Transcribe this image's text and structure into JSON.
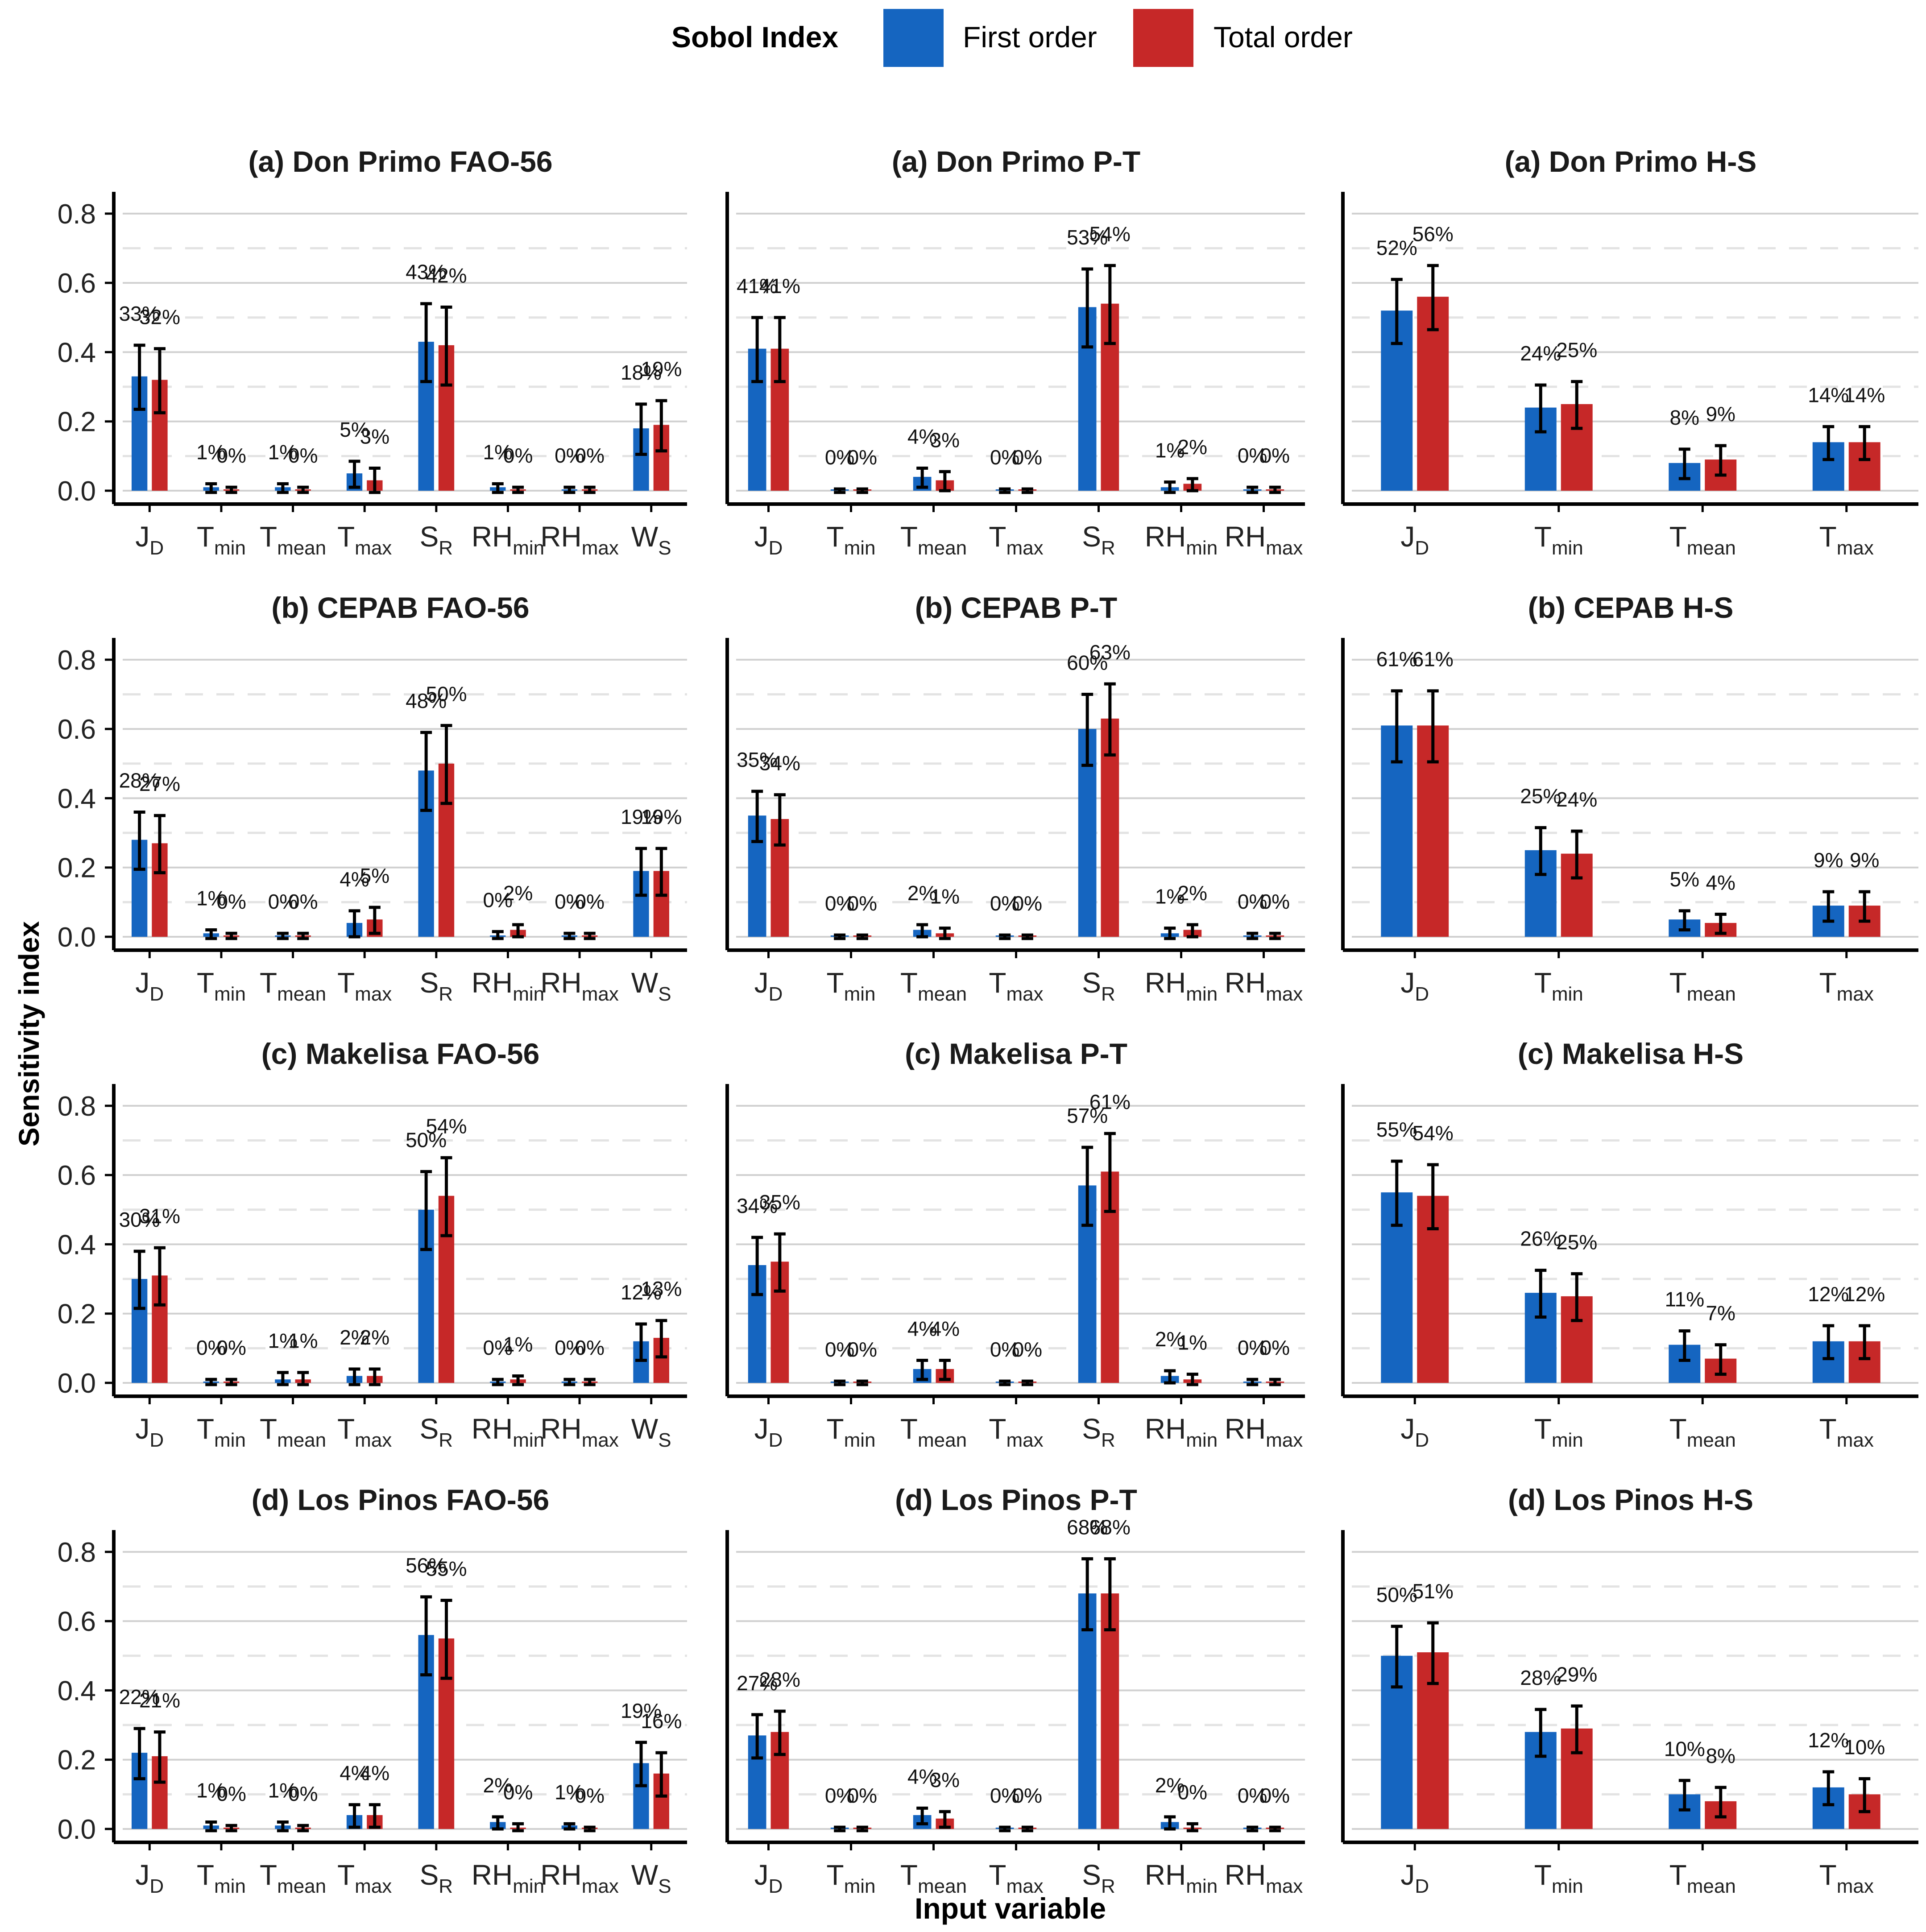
{
  "legend": {
    "title": "Sobol Index",
    "first_label": "First order",
    "total_label": "Total order"
  },
  "axis": {
    "ylabel": "Sensitivity index",
    "xlabel": "Input variable",
    "yticks": [
      "0.0",
      "0.2",
      "0.4",
      "0.6",
      "0.8"
    ]
  },
  "colors": {
    "first": "#1565c0",
    "total": "#c62828"
  },
  "chart_data": [
    {
      "type": "bar",
      "title": "(a) Don Primo FAO-56",
      "ylim": [
        0,
        0.85
      ],
      "categories": [
        [
          "J",
          "D"
        ],
        [
          "T",
          "min"
        ],
        [
          "T",
          "mean"
        ],
        [
          "T",
          "max"
        ],
        [
          "S",
          "R"
        ],
        [
          "RH",
          "min"
        ],
        [
          "RH",
          "max"
        ],
        [
          "W",
          "S"
        ]
      ],
      "series": [
        {
          "name": "First order",
          "values": [
            0.33,
            0.01,
            0.01,
            0.05,
            0.43,
            0.01,
            0.0,
            0.18
          ],
          "errors": [
            0.09,
            0.01,
            0.01,
            0.035,
            0.11,
            0.01,
            0.01,
            0.07
          ],
          "labels": [
            "33%",
            "1%",
            "1%",
            "5%",
            "43%",
            "1%",
            "0%",
            "18%"
          ]
        },
        {
          "name": "Total order",
          "values": [
            0.32,
            0.0,
            0.0,
            0.03,
            0.42,
            0.0,
            0.0,
            0.19
          ],
          "errors": [
            0.09,
            0.01,
            0.01,
            0.035,
            0.11,
            0.01,
            0.01,
            0.07
          ],
          "labels": [
            "32%",
            "0%",
            "0%",
            "3%",
            "42%",
            "0%",
            "0%",
            "19%"
          ]
        }
      ]
    },
    {
      "type": "bar",
      "title": "(a) Don Primo P-T",
      "ylim": [
        0,
        0.85
      ],
      "categories": [
        [
          "J",
          "D"
        ],
        [
          "T",
          "min"
        ],
        [
          "T",
          "mean"
        ],
        [
          "T",
          "max"
        ],
        [
          "S",
          "R"
        ],
        [
          "RH",
          "min"
        ],
        [
          "RH",
          "max"
        ]
      ],
      "series": [
        {
          "name": "First order",
          "values": [
            0.41,
            0.0,
            0.04,
            0.0,
            0.53,
            0.01,
            0.0
          ],
          "errors": [
            0.09,
            0.005,
            0.025,
            0.005,
            0.11,
            0.015,
            0.01
          ],
          "labels": [
            "41%",
            "0%",
            "4%",
            "0%",
            "53%",
            "1%",
            "0%"
          ]
        },
        {
          "name": "Total order",
          "values": [
            0.41,
            0.0,
            0.03,
            0.0,
            0.54,
            0.02,
            0.0
          ],
          "errors": [
            0.09,
            0.005,
            0.025,
            0.005,
            0.11,
            0.015,
            0.01
          ],
          "labels": [
            "41%",
            "0%",
            "3%",
            "0%",
            "54%",
            "2%",
            "0%"
          ]
        }
      ]
    },
    {
      "type": "bar",
      "title": "(a) Don Primo H-S",
      "ylim": [
        0,
        0.85
      ],
      "categories": [
        [
          "J",
          "D"
        ],
        [
          "T",
          "min"
        ],
        [
          "T",
          "mean"
        ],
        [
          "T",
          "max"
        ]
      ],
      "series": [
        {
          "name": "First order",
          "values": [
            0.52,
            0.24,
            0.08,
            0.14
          ],
          "errors": [
            0.09,
            0.065,
            0.04,
            0.045
          ],
          "labels": [
            "52%",
            "24%",
            "8%",
            "14%"
          ]
        },
        {
          "name": "Total order",
          "values": [
            0.56,
            0.25,
            0.09,
            0.14
          ],
          "errors": [
            0.09,
            0.065,
            0.04,
            0.045
          ],
          "labels": [
            "56%",
            "25%",
            "9%",
            "14%"
          ]
        }
      ]
    },
    {
      "type": "bar",
      "title": "(b) CEPAB FAO-56",
      "ylim": [
        0,
        0.85
      ],
      "categories": [
        [
          "J",
          "D"
        ],
        [
          "T",
          "min"
        ],
        [
          "T",
          "mean"
        ],
        [
          "T",
          "max"
        ],
        [
          "S",
          "R"
        ],
        [
          "RH",
          "min"
        ],
        [
          "RH",
          "max"
        ],
        [
          "W",
          "S"
        ]
      ],
      "series": [
        {
          "name": "First order",
          "values": [
            0.28,
            0.01,
            0.0,
            0.04,
            0.48,
            0.0,
            0.0,
            0.19
          ],
          "errors": [
            0.08,
            0.01,
            0.01,
            0.035,
            0.11,
            0.015,
            0.01,
            0.065
          ],
          "labels": [
            "28%",
            "1%",
            "0%",
            "4%",
            "48%",
            "0%",
            "0%",
            "19%"
          ]
        },
        {
          "name": "Total order",
          "values": [
            0.27,
            0.0,
            0.0,
            0.05,
            0.5,
            0.02,
            0.0,
            0.19
          ],
          "errors": [
            0.08,
            0.01,
            0.01,
            0.035,
            0.11,
            0.015,
            0.01,
            0.065
          ],
          "labels": [
            "27%",
            "0%",
            "0%",
            "5%",
            "50%",
            "2%",
            "0%",
            "19%"
          ]
        }
      ]
    },
    {
      "type": "bar",
      "title": "(b) CEPAB P-T",
      "ylim": [
        0,
        0.85
      ],
      "categories": [
        [
          "J",
          "D"
        ],
        [
          "T",
          "min"
        ],
        [
          "T",
          "mean"
        ],
        [
          "T",
          "max"
        ],
        [
          "S",
          "R"
        ],
        [
          "RH",
          "min"
        ],
        [
          "RH",
          "max"
        ]
      ],
      "series": [
        {
          "name": "First order",
          "values": [
            0.35,
            0.0,
            0.02,
            0.0,
            0.6,
            0.01,
            0.0
          ],
          "errors": [
            0.07,
            0.005,
            0.015,
            0.005,
            0.1,
            0.015,
            0.01
          ],
          "labels": [
            "35%",
            "0%",
            "2%",
            "0%",
            "60%",
            "1%",
            "0%"
          ]
        },
        {
          "name": "Total order",
          "values": [
            0.34,
            0.0,
            0.01,
            0.0,
            0.63,
            0.02,
            0.0
          ],
          "errors": [
            0.07,
            0.005,
            0.015,
            0.005,
            0.1,
            0.015,
            0.01
          ],
          "labels": [
            "34%",
            "0%",
            "1%",
            "0%",
            "63%",
            "2%",
            "0%"
          ]
        }
      ]
    },
    {
      "type": "bar",
      "title": "(b) CEPAB H-S",
      "ylim": [
        0,
        0.85
      ],
      "categories": [
        [
          "J",
          "D"
        ],
        [
          "T",
          "min"
        ],
        [
          "T",
          "mean"
        ],
        [
          "T",
          "max"
        ]
      ],
      "series": [
        {
          "name": "First order",
          "values": [
            0.61,
            0.25,
            0.05,
            0.09
          ],
          "errors": [
            0.1,
            0.065,
            0.025,
            0.04
          ],
          "labels": [
            "61%",
            "25%",
            "5%",
            "9%"
          ]
        },
        {
          "name": "Total order",
          "values": [
            0.61,
            0.24,
            0.04,
            0.09
          ],
          "errors": [
            0.1,
            0.065,
            0.025,
            0.04
          ],
          "labels": [
            "61%",
            "24%",
            "4%",
            "9%"
          ]
        }
      ]
    },
    {
      "type": "bar",
      "title": "(c) Makelisa FAO-56",
      "ylim": [
        0,
        0.85
      ],
      "categories": [
        [
          "J",
          "D"
        ],
        [
          "T",
          "min"
        ],
        [
          "T",
          "mean"
        ],
        [
          "T",
          "max"
        ],
        [
          "S",
          "R"
        ],
        [
          "RH",
          "min"
        ],
        [
          "RH",
          "max"
        ],
        [
          "W",
          "S"
        ]
      ],
      "series": [
        {
          "name": "First order",
          "values": [
            0.3,
            0.0,
            0.01,
            0.02,
            0.5,
            0.0,
            0.0,
            0.12
          ],
          "errors": [
            0.08,
            0.01,
            0.02,
            0.02,
            0.11,
            0.01,
            0.01,
            0.05
          ],
          "labels": [
            "30%",
            "0%",
            "1%",
            "2%",
            "50%",
            "0%",
            "0%",
            "12%"
          ]
        },
        {
          "name": "Total order",
          "values": [
            0.31,
            0.0,
            0.01,
            0.02,
            0.54,
            0.01,
            0.0,
            0.13
          ],
          "errors": [
            0.08,
            0.01,
            0.02,
            0.02,
            0.11,
            0.01,
            0.01,
            0.05
          ],
          "labels": [
            "31%",
            "0%",
            "1%",
            "2%",
            "54%",
            "1%",
            "0%",
            "13%"
          ]
        }
      ]
    },
    {
      "type": "bar",
      "title": "(c) Makelisa P-T",
      "ylim": [
        0,
        0.85
      ],
      "categories": [
        [
          "J",
          "D"
        ],
        [
          "T",
          "min"
        ],
        [
          "T",
          "mean"
        ],
        [
          "T",
          "max"
        ],
        [
          "S",
          "R"
        ],
        [
          "RH",
          "min"
        ],
        [
          "RH",
          "max"
        ]
      ],
      "series": [
        {
          "name": "First order",
          "values": [
            0.34,
            0.0,
            0.04,
            0.0,
            0.57,
            0.02,
            0.0
          ],
          "errors": [
            0.08,
            0.005,
            0.025,
            0.005,
            0.11,
            0.015,
            0.01
          ],
          "labels": [
            "34%",
            "0%",
            "4%",
            "0%",
            "57%",
            "2%",
            "0%"
          ]
        },
        {
          "name": "Total order",
          "values": [
            0.35,
            0.0,
            0.04,
            0.0,
            0.61,
            0.01,
            0.0
          ],
          "errors": [
            0.08,
            0.005,
            0.025,
            0.005,
            0.11,
            0.015,
            0.01
          ],
          "labels": [
            "35%",
            "0%",
            "4%",
            "0%",
            "61%",
            "1%",
            "0%"
          ]
        }
      ]
    },
    {
      "type": "bar",
      "title": "(c) Makelisa H-S",
      "ylim": [
        0,
        0.85
      ],
      "categories": [
        [
          "J",
          "D"
        ],
        [
          "T",
          "min"
        ],
        [
          "T",
          "mean"
        ],
        [
          "T",
          "max"
        ]
      ],
      "series": [
        {
          "name": "First order",
          "values": [
            0.55,
            0.26,
            0.11,
            0.12
          ],
          "errors": [
            0.09,
            0.065,
            0.04,
            0.045
          ],
          "labels": [
            "55%",
            "26%",
            "11%",
            "12%"
          ]
        },
        {
          "name": "Total order",
          "values": [
            0.54,
            0.25,
            0.07,
            0.12
          ],
          "errors": [
            0.09,
            0.065,
            0.04,
            0.045
          ],
          "labels": [
            "54%",
            "25%",
            "7%",
            "12%"
          ]
        }
      ]
    },
    {
      "type": "bar",
      "title": "(d) Los Pinos FAO-56",
      "ylim": [
        0,
        0.85
      ],
      "categories": [
        [
          "J",
          "D"
        ],
        [
          "T",
          "min"
        ],
        [
          "T",
          "mean"
        ],
        [
          "T",
          "max"
        ],
        [
          "S",
          "R"
        ],
        [
          "RH",
          "min"
        ],
        [
          "RH",
          "max"
        ],
        [
          "W",
          "S"
        ]
      ],
      "series": [
        {
          "name": "First order",
          "values": [
            0.22,
            0.01,
            0.01,
            0.04,
            0.56,
            0.02,
            0.01,
            0.19
          ],
          "errors": [
            0.07,
            0.01,
            0.01,
            0.03,
            0.11,
            0.015,
            0.005,
            0.06
          ],
          "labels": [
            "22%",
            "1%",
            "1%",
            "4%",
            "56%",
            "2%",
            "1%",
            "19%"
          ]
        },
        {
          "name": "Total order",
          "values": [
            0.21,
            0.0,
            0.0,
            0.04,
            0.55,
            0.0,
            0.0,
            0.16
          ],
          "errors": [
            0.07,
            0.01,
            0.01,
            0.03,
            0.11,
            0.015,
            0.005,
            0.06
          ],
          "labels": [
            "21%",
            "0%",
            "0%",
            "4%",
            "55%",
            "0%",
            "0%",
            "16%"
          ]
        }
      ]
    },
    {
      "type": "bar",
      "title": "(d) Los Pinos P-T",
      "ylim": [
        0,
        0.85
      ],
      "categories": [
        [
          "J",
          "D"
        ],
        [
          "T",
          "min"
        ],
        [
          "T",
          "mean"
        ],
        [
          "T",
          "max"
        ],
        [
          "S",
          "R"
        ],
        [
          "RH",
          "min"
        ],
        [
          "RH",
          "max"
        ]
      ],
      "series": [
        {
          "name": "First order",
          "values": [
            0.27,
            0.0,
            0.04,
            0.0,
            0.68,
            0.02,
            0.0
          ],
          "errors": [
            0.06,
            0.005,
            0.02,
            0.005,
            0.1,
            0.015,
            0.005
          ],
          "labels": [
            "27%",
            "0%",
            "4%",
            "0%",
            "68%",
            "2%",
            "0%"
          ]
        },
        {
          "name": "Total order",
          "values": [
            0.28,
            0.0,
            0.03,
            0.0,
            0.68,
            0.0,
            0.0
          ],
          "errors": [
            0.06,
            0.005,
            0.02,
            0.005,
            0.1,
            0.015,
            0.005
          ],
          "labels": [
            "28%",
            "0%",
            "3%",
            "0%",
            "68%",
            "0%",
            "0%"
          ]
        }
      ]
    },
    {
      "type": "bar",
      "title": "(d) Los Pinos H-S",
      "ylim": [
        0,
        0.85
      ],
      "categories": [
        [
          "J",
          "D"
        ],
        [
          "T",
          "min"
        ],
        [
          "T",
          "mean"
        ],
        [
          "T",
          "max"
        ]
      ],
      "series": [
        {
          "name": "First order",
          "values": [
            0.5,
            0.28,
            0.1,
            0.12
          ],
          "errors": [
            0.085,
            0.065,
            0.04,
            0.045
          ],
          "labels": [
            "50%",
            "28%",
            "10%",
            "12%"
          ]
        },
        {
          "name": "Total order",
          "values": [
            0.51,
            0.29,
            0.08,
            0.1
          ],
          "errors": [
            0.085,
            0.065,
            0.04,
            0.045
          ],
          "labels": [
            "51%",
            "29%",
            "8%",
            "10%"
          ]
        }
      ]
    }
  ]
}
